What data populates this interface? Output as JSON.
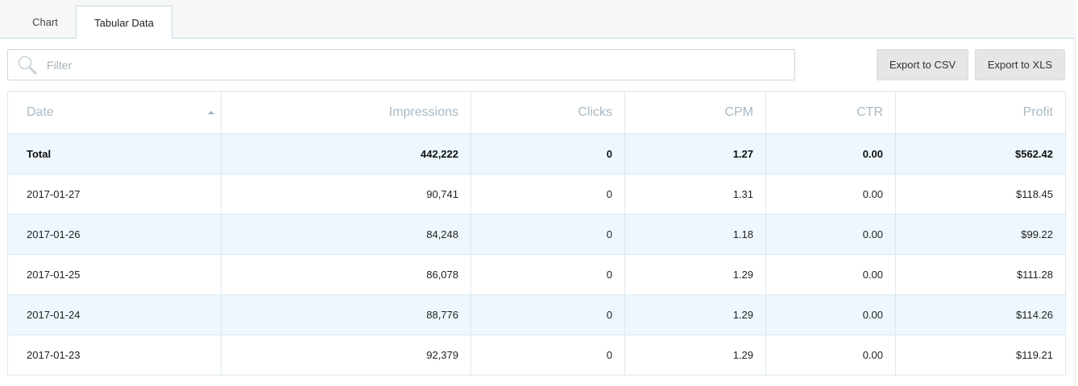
{
  "tabs": [
    {
      "label": "Chart"
    },
    {
      "label": "Tabular Data"
    }
  ],
  "filter": {
    "placeholder": "Filter",
    "value": ""
  },
  "buttons": {
    "export_csv": "Export to CSV",
    "export_xls": "Export to XLS"
  },
  "table": {
    "headers": {
      "date": "Date",
      "impressions": "Impressions",
      "clicks": "Clicks",
      "cpm": "CPM",
      "ctr": "CTR",
      "profit": "Profit"
    },
    "sort": {
      "column": "Date",
      "direction": "ascending"
    },
    "rows": [
      {
        "date": "Total",
        "impressions": "442,222",
        "clicks": "0",
        "cpm": "1.27",
        "ctr": "0.00",
        "profit": "$562.42"
      },
      {
        "date": "2017-01-27",
        "impressions": "90,741",
        "clicks": "0",
        "cpm": "1.31",
        "ctr": "0.00",
        "profit": "$118.45"
      },
      {
        "date": "2017-01-26",
        "impressions": "84,248",
        "clicks": "0",
        "cpm": "1.18",
        "ctr": "0.00",
        "profit": "$99.22"
      },
      {
        "date": "2017-01-25",
        "impressions": "86,078",
        "clicks": "0",
        "cpm": "1.29",
        "ctr": "0.00",
        "profit": "$111.28"
      },
      {
        "date": "2017-01-24",
        "impressions": "88,776",
        "clicks": "0",
        "cpm": "1.29",
        "ctr": "0.00",
        "profit": "$114.26"
      },
      {
        "date": "2017-01-23",
        "impressions": "92,379",
        "clicks": "0",
        "cpm": "1.29",
        "ctr": "0.00",
        "profit": "$119.21"
      }
    ]
  },
  "colors": {
    "accent_row": "#edf7fd",
    "header_text": "#a9b8c2",
    "border": "#dde8ee"
  },
  "icons": {
    "filter": "search-icon",
    "sort": "sort-ascending-icon"
  }
}
